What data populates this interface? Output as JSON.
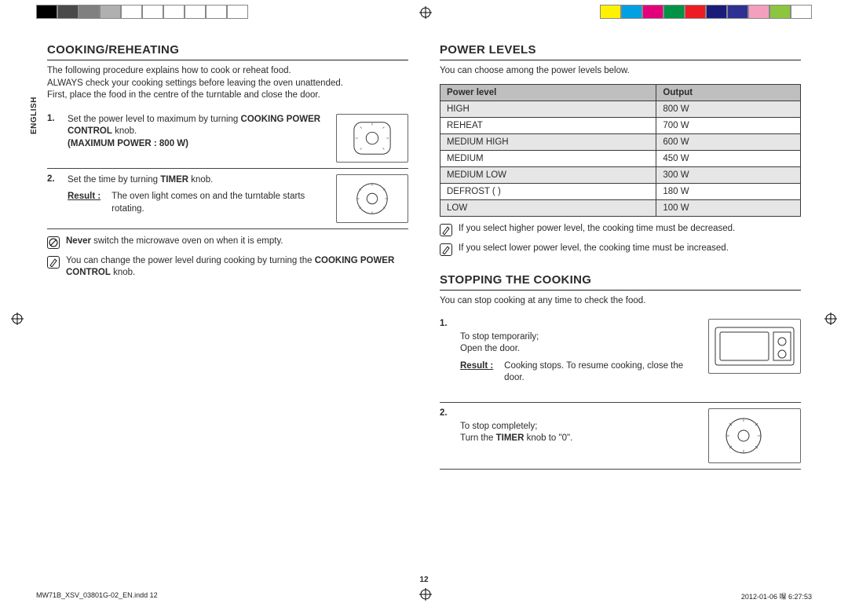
{
  "registration_bars": {
    "left_swatches": [
      "#000000",
      "#4a4a4a",
      "#808080",
      "#b0b0b0",
      "#ffffff",
      "#ffffff",
      "#ffffff",
      "#ffffff",
      "#ffffff",
      "#ffffff"
    ],
    "right_swatches": [
      "#fff200",
      "#00a0e3",
      "#e3007b",
      "#009245",
      "#ed1c24",
      "#1b1b7a",
      "#2e3192",
      "#f59fbf",
      "#8cc63f",
      "#ffffff"
    ]
  },
  "side_tab": "ENGLISH",
  "left_col": {
    "heading": "COOKING/REHEATING",
    "intro": "The following procedure explains how to cook or reheat food.\nALWAYS check your cooking settings before leaving the oven unattended.\nFirst, place the food in the centre of the turntable and close the door.",
    "steps": [
      {
        "num": "1.",
        "text": "Set the power level to maximum by turning ",
        "bold1": "COOKING POWER CONTROL",
        "tail1": " knob.",
        "bold2": "(MAXIMUM POWER : 800 W)"
      },
      {
        "num": "2.",
        "text": "Set the time by turning ",
        "bold1": "TIMER",
        "tail1": " knob.",
        "result_label": "Result :",
        "result_text": "The oven light comes on and the turntable starts rotating."
      }
    ],
    "warn_icon_label": "⦰",
    "warn_text_pre": "Never",
    "warn_text": " switch the microwave oven on when it is empty.",
    "tip_icon_label": "✎",
    "tip_text_pre": "You can change the power level during cooking by turning the ",
    "tip_bold": "COOKING POWER CONTROL",
    "tip_tail": " knob."
  },
  "right_col": {
    "pl_heading": "POWER LEVELS",
    "pl_intro": "You can choose among the power levels below.",
    "pl_table": {
      "columns": [
        "Power level",
        "Output"
      ],
      "col_widths": [
        "60%",
        "40%"
      ],
      "header_bg": "#bfbfbf",
      "zebra_bg": "#e6e6e6",
      "border_color": "#3a3a3a",
      "rows": [
        {
          "level": "HIGH",
          "output": "800 W"
        },
        {
          "level": "REHEAT",
          "output": "700 W"
        },
        {
          "level": "MEDIUM HIGH",
          "output": "600 W"
        },
        {
          "level": "MEDIUM",
          "output": "450 W"
        },
        {
          "level": "MEDIUM LOW",
          "output": "300 W"
        },
        {
          "level": "DEFROST (   )",
          "output": "180 W"
        },
        {
          "level": "LOW",
          "output": "100 W"
        }
      ]
    },
    "pl_note1": "If you select higher power level, the cooking time must be decreased.",
    "pl_note2": "If you select lower power level, the cooking time must be increased.",
    "stop_heading": "STOPPING THE COOKING",
    "stop_intro": "You can stop cooking at any time to check the food.",
    "stop_steps": [
      {
        "num": "1.",
        "text": "To stop temporarily;\nOpen the door.",
        "result_label": "Result :",
        "result_text": "Cooking stops. To resume cooking, close the door."
      },
      {
        "num": "2.",
        "text_pre": "To stop completely;\nTurn the ",
        "bold": "TIMER",
        "text_post": " knob to \"0\"."
      }
    ]
  },
  "page_number": "12",
  "footer_left": "MW71B_XSV_03801G-02_EN.indd   12",
  "footer_right": "2012-01-06   㘀 6:27:53"
}
